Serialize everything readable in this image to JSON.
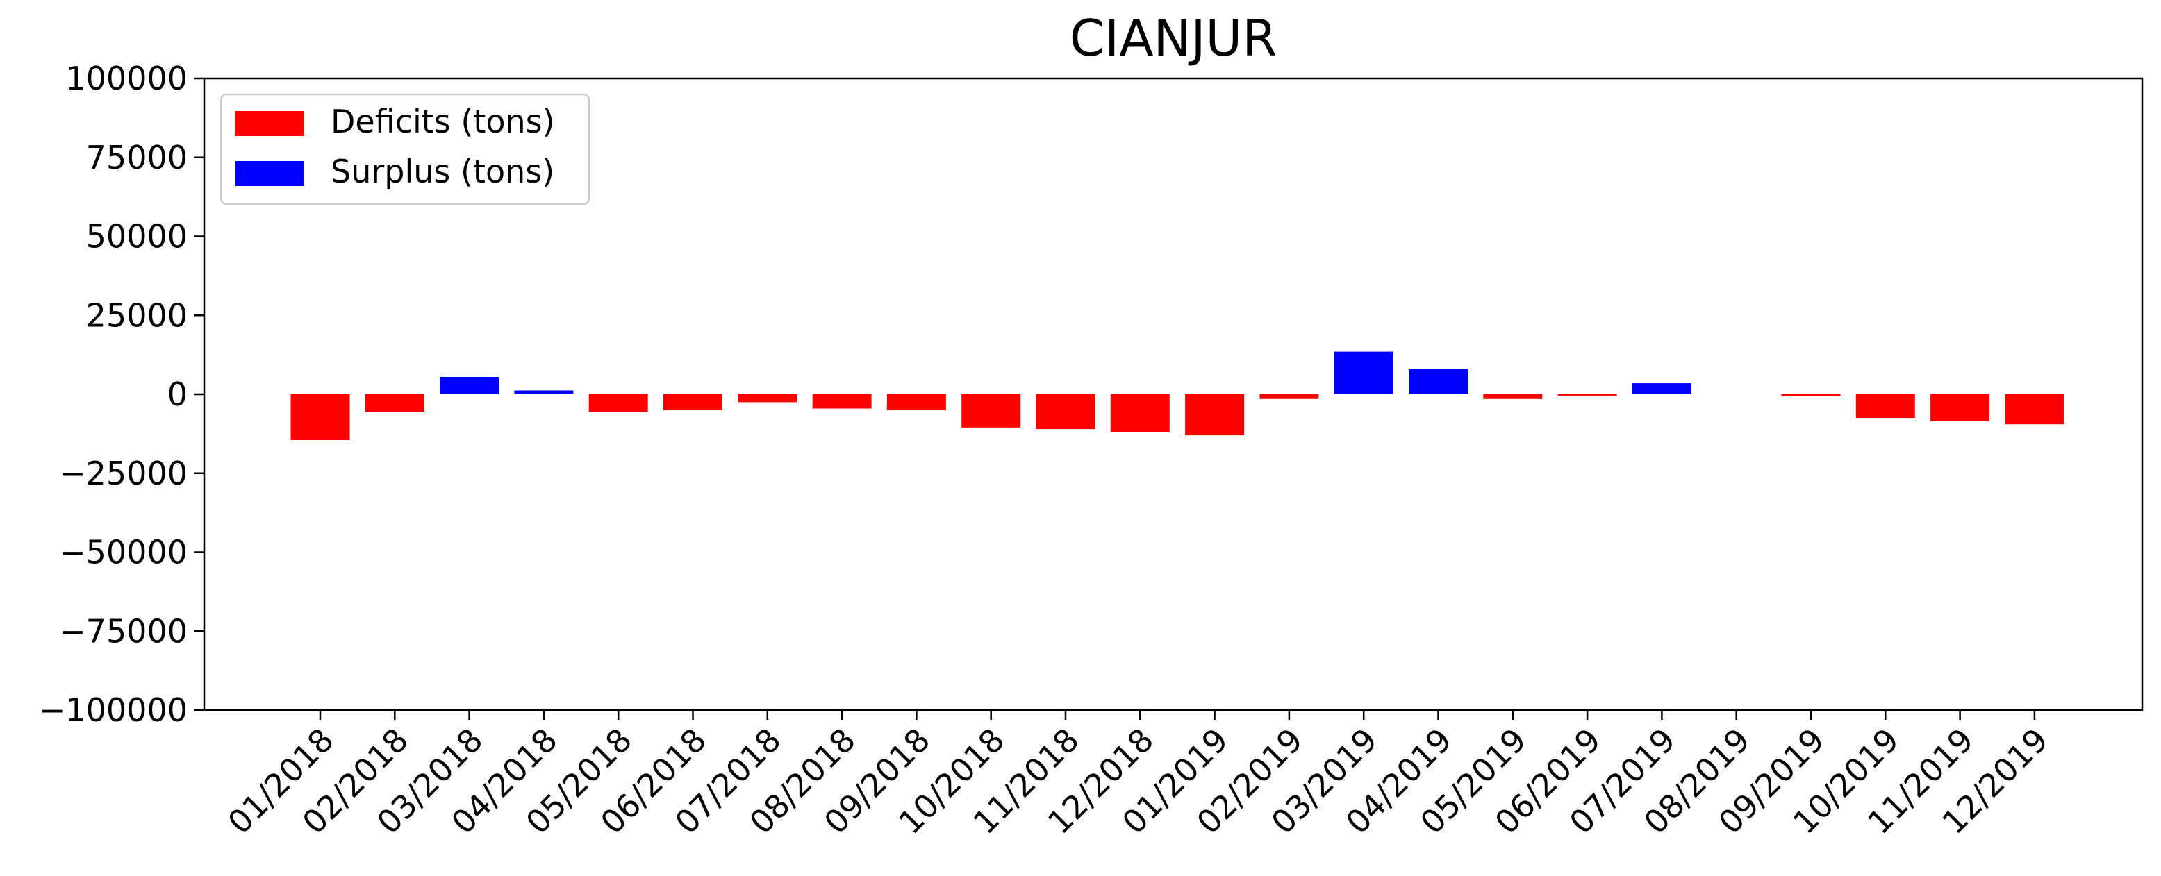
{
  "chart_data": {
    "type": "bar",
    "title": "CIANJUR",
    "xlabel": "",
    "ylabel": "",
    "ylim": [
      -100000,
      100000
    ],
    "yticks": [
      100000,
      75000,
      50000,
      25000,
      0,
      -25000,
      -50000,
      -75000,
      -100000
    ],
    "ytick_labels": [
      "100000",
      "75000",
      "50000",
      "25000",
      "0",
      "−25000",
      "−50000",
      "−75000",
      "−100000"
    ],
    "grid": false,
    "legend_position": "top-left",
    "categories": [
      "01/2018",
      "02/2018",
      "03/2018",
      "04/2018",
      "05/2018",
      "06/2018",
      "07/2018",
      "08/2018",
      "09/2018",
      "10/2018",
      "11/2018",
      "12/2018",
      "01/2019",
      "02/2019",
      "03/2019",
      "04/2019",
      "05/2019",
      "06/2019",
      "07/2019",
      "08/2019",
      "09/2019",
      "10/2019",
      "11/2019",
      "12/2019"
    ],
    "series": [
      {
        "name": "Deficits (tons)",
        "color": "#ff0000",
        "values": [
          -14500,
          -5500,
          0,
          0,
          -5500,
          -5000,
          -2500,
          -4500,
          -5000,
          -10500,
          -11000,
          -12000,
          -13000,
          -1500,
          0,
          0,
          -1500,
          -500,
          0,
          0,
          -600,
          -7500,
          -8500,
          -9500
        ]
      },
      {
        "name": "Surplus (tons)",
        "color": "#0000ff",
        "values": [
          0,
          0,
          5500,
          1200,
          0,
          0,
          0,
          0,
          0,
          0,
          0,
          0,
          0,
          0,
          13500,
          8000,
          0,
          0,
          3500,
          0,
          0,
          0,
          0,
          0
        ]
      }
    ]
  }
}
